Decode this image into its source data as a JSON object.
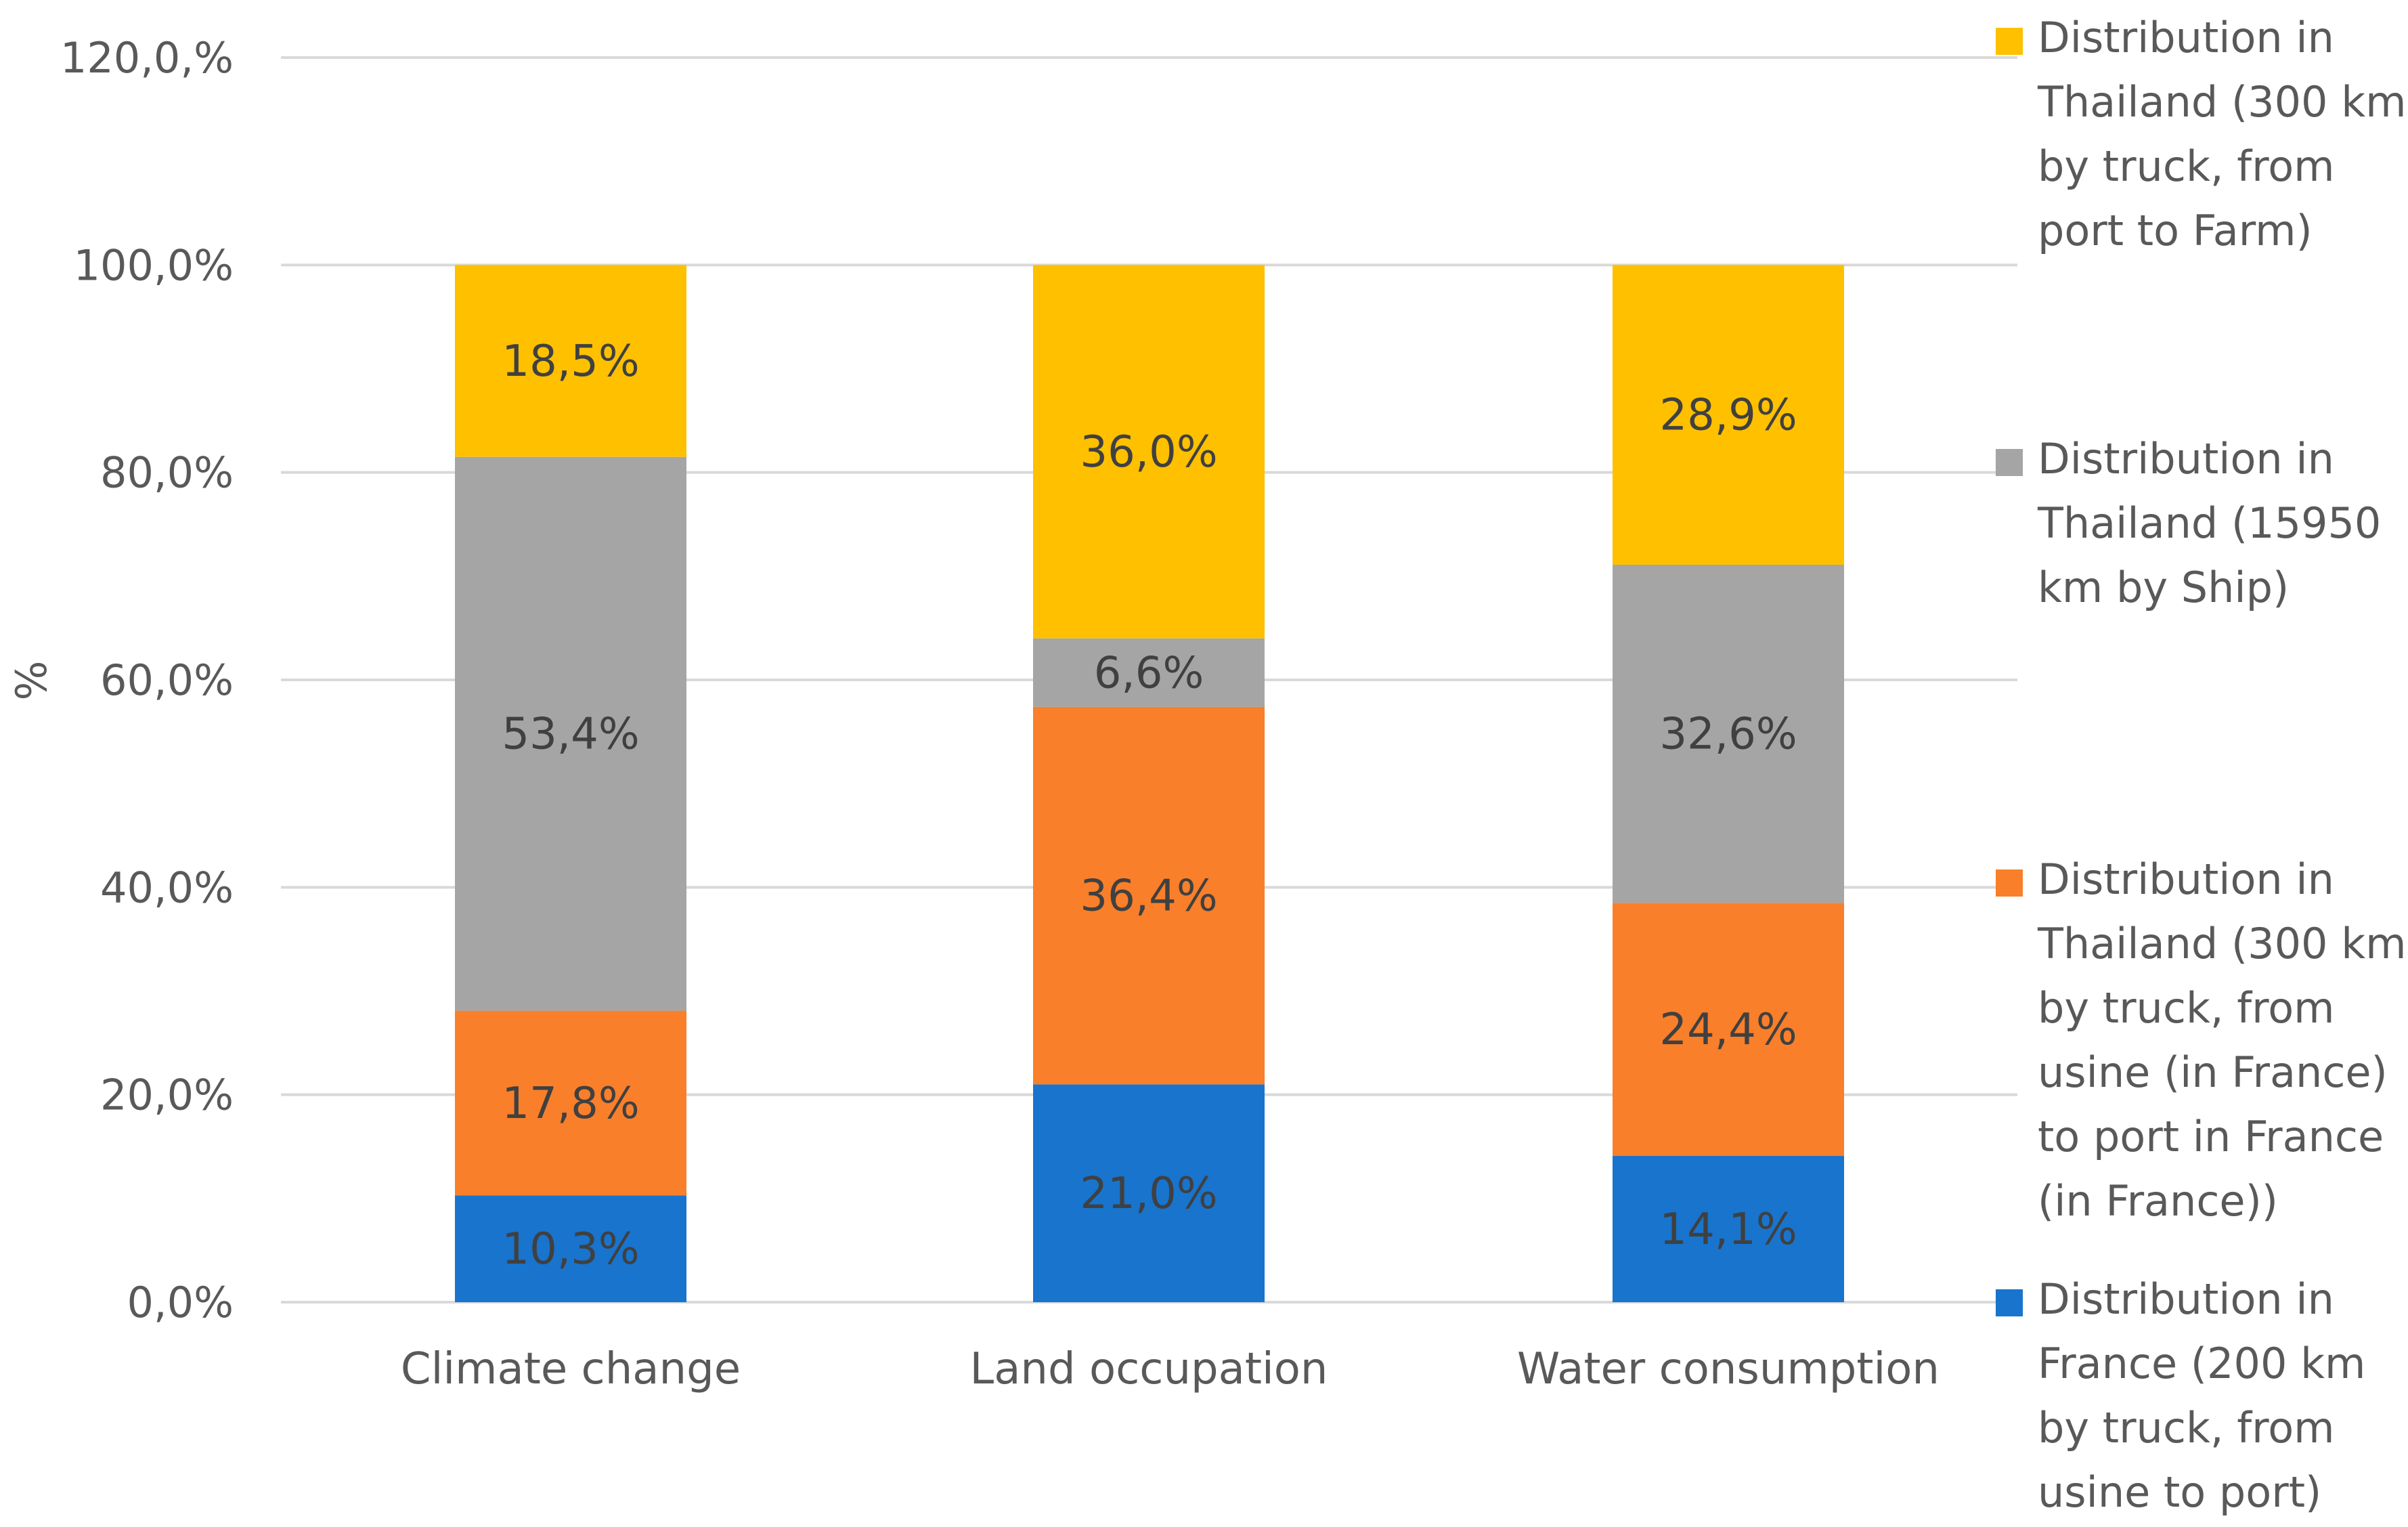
{
  "chart_data": {
    "type": "stacked_bar",
    "title": "",
    "xlabel": "",
    "ylabel": "%",
    "ylim": [
      0,
      120
    ],
    "yticks": [
      "0,0%",
      "20,0%",
      "40,0%",
      "60,0%",
      "80,0%",
      "100,0%",
      "120,0,%"
    ],
    "categories": [
      "Climate change",
      "Land occupation",
      "Water consumption"
    ],
    "series": [
      {
        "name": "Distribution in France (200 km by truck, from usine to port)",
        "legend_lines": [
          "Distribution in",
          "France (200 km",
          "by truck, from",
          "usine to port)"
        ],
        "color": "#1874CD",
        "values": [
          10.3,
          21.0,
          14.1
        ],
        "labels": [
          "10,3%",
          "21,0%",
          "14,1%"
        ]
      },
      {
        "name": "Distribution in Thailand (300 km by truck, from usine (in France) to port in France (in France))",
        "legend_lines": [
          "Distribution in",
          "Thailand (300 km",
          "by truck, from",
          "usine (in France)",
          "to port in France",
          "(in France))"
        ],
        "color": "#F97F2A",
        "values": [
          17.8,
          36.4,
          24.4
        ],
        "labels": [
          "17,8%",
          "36,4%",
          "24,4%"
        ]
      },
      {
        "name": "Distribution in Thailand (15950 km by Ship)",
        "legend_lines": [
          "Distribution in",
          "Thailand (15950",
          "km by Ship)"
        ],
        "color": "#A5A5A5",
        "values": [
          53.4,
          6.6,
          32.6
        ],
        "labels": [
          "53,4%",
          "6,6%",
          "32,6%"
        ]
      },
      {
        "name": "Distribution in Thailand (300 km by truck, from port to Farm)",
        "legend_lines": [
          "Distribution in",
          "Thailand (300 km",
          "by truck, from",
          "port to Farm)"
        ],
        "color": "#FFC000",
        "values": [
          18.5,
          36.0,
          28.9
        ],
        "labels": [
          "18,5%",
          "36,0%",
          "28,9%"
        ]
      }
    ],
    "grid": true,
    "legend_position": "right"
  }
}
